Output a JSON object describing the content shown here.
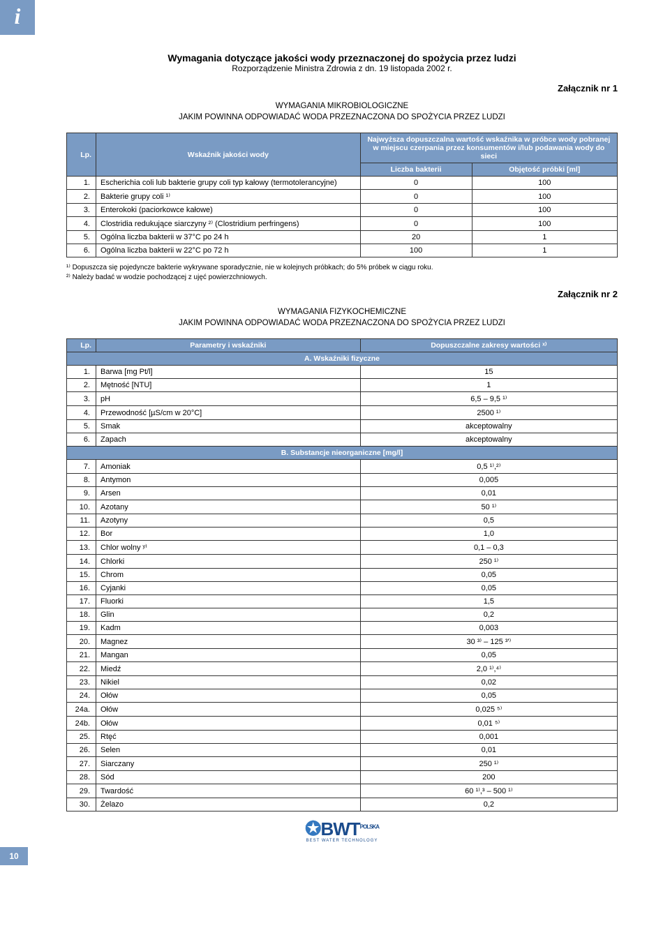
{
  "info_tab": "i",
  "page_number": "10",
  "header": {
    "main_title": "Wymagania dotyczące jakości wody przeznaczonej do spożycia przez ludzi",
    "subtitle": "Rozporządzenie Ministra Zdrowia z dn. 19 listopada 2002 r."
  },
  "annex1": {
    "label": "Załącznik nr 1",
    "section_title_l1": "WYMAGANIA MIKROBIOLOGICZNE",
    "section_title_l2": "JAKIM POWINNA ODPOWIADAĆ WODA PRZEZNACZONA DO SPOŻYCIA PRZEZ LUDZI",
    "table": {
      "head_lp": "Lp.",
      "head_indicator": "Wskaźnik jakości wody",
      "head_top": "Najwyższa dopuszczalna wartość wskaźnika w próbce wody pobranej w miejscu czerpania przez konsumentów i/lub podawania wody do sieci",
      "head_count": "Liczba bakterii",
      "head_volume": "Objętość próbki [ml]",
      "rows": [
        {
          "lp": "1.",
          "name": "Escherichia coli lub bakterie grupy coli typ kałowy (termotolerancyjne)",
          "count": "0",
          "vol": "100"
        },
        {
          "lp": "2.",
          "name": "Bakterie grupy coli ¹⁾",
          "count": "0",
          "vol": "100"
        },
        {
          "lp": "3.",
          "name": "Enterokoki (paciorkowce kałowe)",
          "count": "0",
          "vol": "100"
        },
        {
          "lp": "4.",
          "name": "Clostridia redukujące siarczyny ²⁾ (Clostridium perfringens)",
          "count": "0",
          "vol": "100"
        },
        {
          "lp": "5.",
          "name": "Ogólna liczba bakterii w 37°C po 24 h",
          "count": "20",
          "vol": "1"
        },
        {
          "lp": "6.",
          "name": "Ogólna liczba bakterii w 22°C po 72 h",
          "count": "100",
          "vol": "1"
        }
      ]
    },
    "note1": "¹⁾ Dopuszcza się pojedyncze bakterie wykrywane sporadycznie, nie w kolejnych próbkach; do 5% próbek w ciągu roku.",
    "note2": "²⁾ Należy badać w wodzie pochodzącej z ujęć powierzchniowych."
  },
  "annex2": {
    "label": "Załącznik nr 2",
    "section_title_l1": "WYMAGANIA FIZYKOCHEMICZNE",
    "section_title_l2": "JAKIM POWINNA ODPOWIADAĆ WODA PRZEZNACZONA DO SPOŻYCIA PRZEZ LUDZI",
    "table": {
      "head_lp": "Lp.",
      "head_param": "Parametry i wskaźniki",
      "head_range": "Dopuszczalne zakresy wartości ˣ⁾",
      "section_a": "A. Wskaźniki fizyczne",
      "rows_a": [
        {
          "lp": "1.",
          "name": "Barwa [mg Pt/l]",
          "val": "15"
        },
        {
          "lp": "2.",
          "name": "Mętność [NTU]",
          "val": "1"
        },
        {
          "lp": "3.",
          "name": "pH",
          "val": "6,5 – 9,5 ¹⁾"
        },
        {
          "lp": "4.",
          "name": "Przewodność [µS/cm w 20°C]",
          "val": "2500 ¹⁾"
        },
        {
          "lp": "5.",
          "name": "Smak",
          "val": "akceptowalny"
        },
        {
          "lp": "6.",
          "name": "Zapach",
          "val": "akceptowalny"
        }
      ],
      "section_b": "B. Substancje nieorganiczne [mg/l]",
      "rows_b": [
        {
          "lp": "7.",
          "name": "Amoniak",
          "val": "0,5 ¹⁾,²⁾"
        },
        {
          "lp": "8.",
          "name": "Antymon",
          "val": "0,005"
        },
        {
          "lp": "9.",
          "name": "Arsen",
          "val": "0,01"
        },
        {
          "lp": "10.",
          "name": "Azotany",
          "val": "50 ¹⁾"
        },
        {
          "lp": "11.",
          "name": "Azotyny",
          "val": "0,5"
        },
        {
          "lp": "12.",
          "name": "Bor",
          "val": "1,0"
        },
        {
          "lp": "13.",
          "name": "Chlor wolny ʸ⁾",
          "val": "0,1 – 0,3"
        },
        {
          "lp": "14.",
          "name": "Chlorki",
          "val": "250 ¹⁾"
        },
        {
          "lp": "15.",
          "name": "Chrom",
          "val": "0,05"
        },
        {
          "lp": "16.",
          "name": "Cyjanki",
          "val": "0,05"
        },
        {
          "lp": "17.",
          "name": "Fluorki",
          "val": "1,5"
        },
        {
          "lp": "18.",
          "name": "Glin",
          "val": "0,2"
        },
        {
          "lp": "19.",
          "name": "Kadm",
          "val": "0,003"
        },
        {
          "lp": "20.",
          "name": "Magnez",
          "val": "30 ³⁾ – 125 ³'⁾"
        },
        {
          "lp": "21.",
          "name": "Mangan",
          "val": "0,05"
        },
        {
          "lp": "22.",
          "name": "Miedź",
          "val": "2,0 ¹⁾,⁴⁾"
        },
        {
          "lp": "23.",
          "name": "Nikiel",
          "val": "0,02"
        },
        {
          "lp": "24.",
          "name": "Ołów",
          "val": "0,05"
        },
        {
          "lp": "24a.",
          "name": "Ołów",
          "val": "0,025 ⁵⁾"
        },
        {
          "lp": "24b.",
          "name": "Ołów",
          "val": "0,01 ⁵⁾"
        },
        {
          "lp": "25.",
          "name": "Rtęć",
          "val": "0,001"
        },
        {
          "lp": "26.",
          "name": "Selen",
          "val": "0,01"
        },
        {
          "lp": "27.",
          "name": "Siarczany",
          "val": "250 ¹⁾"
        },
        {
          "lp": "28.",
          "name": "Sód",
          "val": "200"
        },
        {
          "lp": "29.",
          "name": "Twardość",
          "val": "60 ¹⁾,³ – 500 ¹⁾"
        },
        {
          "lp": "30.",
          "name": "Żelazo",
          "val": "0,2"
        }
      ]
    }
  },
  "logo": {
    "text": "BWT",
    "tag": "POLSKA",
    "sub": "BEST WATER TECHNOLOGY"
  },
  "colors": {
    "accent": "#7a9bc4",
    "border": "#333333",
    "text": "#000000",
    "logo": "#1a4b8c"
  }
}
